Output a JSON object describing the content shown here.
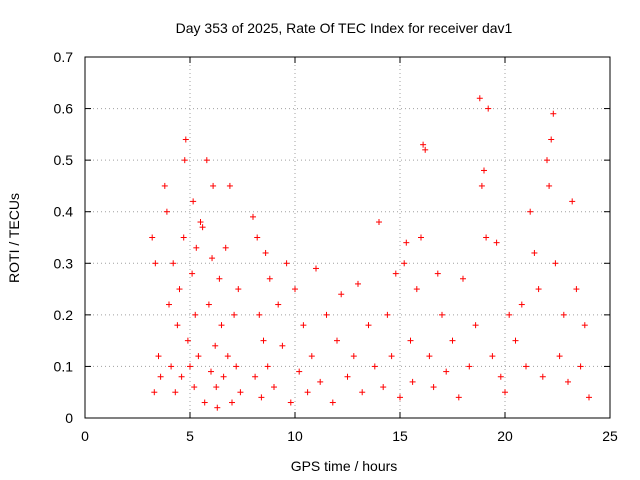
{
  "chart_data": {
    "type": "scatter",
    "title": "Day 353 of 2025, Rate Of TEC Index for receiver dav1",
    "xlabel": "GPS time / hours",
    "ylabel": "ROTI / TECUs",
    "xlim": [
      0,
      25
    ],
    "ylim": [
      0,
      0.7
    ],
    "xticks": [
      0,
      5,
      10,
      15,
      20,
      25
    ],
    "yticks": [
      0,
      0.1,
      0.2,
      0.3,
      0.4,
      0.5,
      0.6,
      0.7
    ],
    "grid": true,
    "marker": "+",
    "color": "#ff0000",
    "series": [
      {
        "name": "dav1",
        "x": [
          3.2,
          3.3,
          3.35,
          3.5,
          3.6,
          3.8,
          3.9,
          4.0,
          4.1,
          4.2,
          4.3,
          4.4,
          4.5,
          4.6,
          4.7,
          4.75,
          4.8,
          4.9,
          5.0,
          5.1,
          5.15,
          5.2,
          5.25,
          5.3,
          5.4,
          5.5,
          5.6,
          5.7,
          5.8,
          5.9,
          6.0,
          6.05,
          6.1,
          6.2,
          6.25,
          6.3,
          6.4,
          6.5,
          6.6,
          6.7,
          6.8,
          6.9,
          7.0,
          7.1,
          7.2,
          7.3,
          7.4,
          8.0,
          8.1,
          8.2,
          8.3,
          8.4,
          8.5,
          8.6,
          8.7,
          8.8,
          9.0,
          9.2,
          9.4,
          9.6,
          9.8,
          10.0,
          10.2,
          10.4,
          10.6,
          10.8,
          11.0,
          11.2,
          11.5,
          11.8,
          12.0,
          12.2,
          12.5,
          12.8,
          13.0,
          13.2,
          13.5,
          13.8,
          14.0,
          14.2,
          14.4,
          14.6,
          14.8,
          15.0,
          15.2,
          15.3,
          15.5,
          15.6,
          15.8,
          16.0,
          16.1,
          16.2,
          16.4,
          16.6,
          16.8,
          17.0,
          17.2,
          17.5,
          17.8,
          18.0,
          18.3,
          18.6,
          18.8,
          18.9,
          19.0,
          19.1,
          19.2,
          19.4,
          19.6,
          19.8,
          20.0,
          20.2,
          20.5,
          20.8,
          21.0,
          21.2,
          21.4,
          21.6,
          21.8,
          22.0,
          22.1,
          22.2,
          22.3,
          22.4,
          22.6,
          22.8,
          23.0,
          23.2,
          23.4,
          23.6,
          23.8,
          24.0
        ],
        "y": [
          0.35,
          0.05,
          0.3,
          0.12,
          0.08,
          0.45,
          0.4,
          0.22,
          0.1,
          0.3,
          0.05,
          0.18,
          0.25,
          0.08,
          0.35,
          0.5,
          0.54,
          0.15,
          0.1,
          0.28,
          0.42,
          0.06,
          0.2,
          0.33,
          0.12,
          0.38,
          0.37,
          0.03,
          0.5,
          0.22,
          0.09,
          0.31,
          0.45,
          0.14,
          0.06,
          0.02,
          0.27,
          0.18,
          0.08,
          0.33,
          0.12,
          0.45,
          0.03,
          0.2,
          0.1,
          0.25,
          0.05,
          0.39,
          0.08,
          0.35,
          0.2,
          0.04,
          0.15,
          0.32,
          0.1,
          0.27,
          0.06,
          0.22,
          0.14,
          0.3,
          0.03,
          0.25,
          0.09,
          0.18,
          0.05,
          0.12,
          0.29,
          0.07,
          0.2,
          0.03,
          0.15,
          0.24,
          0.08,
          0.12,
          0.26,
          0.05,
          0.18,
          0.1,
          0.38,
          0.06,
          0.2,
          0.12,
          0.28,
          0.04,
          0.3,
          0.34,
          0.15,
          0.07,
          0.25,
          0.35,
          0.53,
          0.52,
          0.12,
          0.06,
          0.28,
          0.2,
          0.09,
          0.15,
          0.04,
          0.27,
          0.1,
          0.18,
          0.62,
          0.45,
          0.48,
          0.35,
          0.6,
          0.12,
          0.34,
          0.08,
          0.05,
          0.2,
          0.15,
          0.22,
          0.1,
          0.4,
          0.32,
          0.25,
          0.08,
          0.5,
          0.45,
          0.54,
          0.59,
          0.3,
          0.12,
          0.2,
          0.07,
          0.42,
          0.25,
          0.1,
          0.18,
          0.04
        ]
      }
    ]
  }
}
